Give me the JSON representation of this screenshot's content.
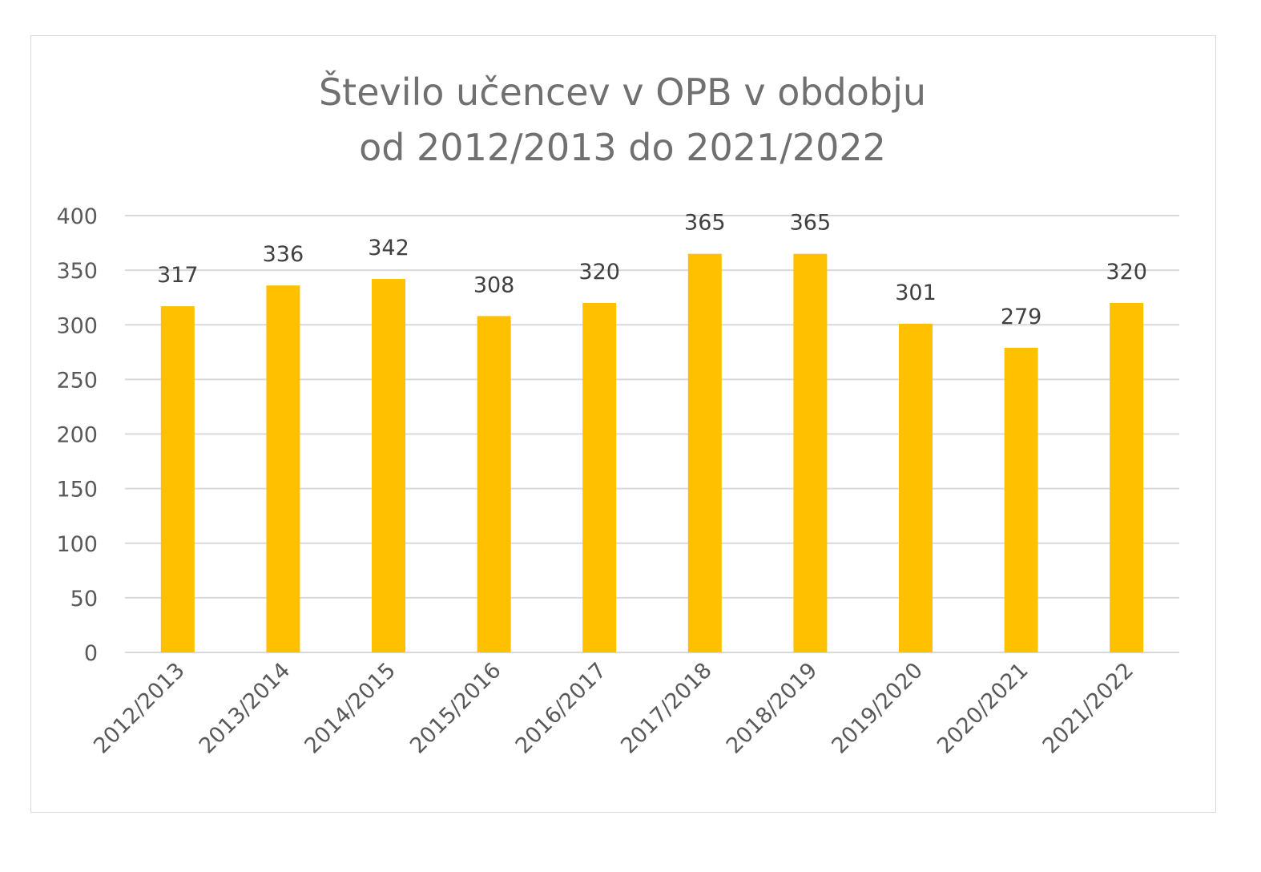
{
  "chart_data": {
    "type": "bar",
    "title_lines": [
      "Število učencev v OPB  v obdobju",
      "od 2012/2013 do 2021/2022"
    ],
    "xlabel": "",
    "ylabel": "",
    "categories": [
      "2012/2013",
      "2013/2014",
      "2014/2015",
      "2015/2016",
      "2016/2017",
      "2017/2018",
      "2018/2019",
      "2019/2020",
      "2020/2021",
      "2021/2022"
    ],
    "values": [
      317,
      336,
      342,
      308,
      320,
      365,
      365,
      301,
      279,
      320
    ],
    "ylim": [
      0,
      400
    ],
    "yticks": [
      0,
      50,
      100,
      150,
      200,
      250,
      300,
      350,
      400
    ],
    "data_labels": true,
    "grid": "horizontal",
    "legend": "none",
    "bar_color": "#FFC000",
    "grid_color": "#D9D9D9",
    "text_color": "#595959"
  }
}
